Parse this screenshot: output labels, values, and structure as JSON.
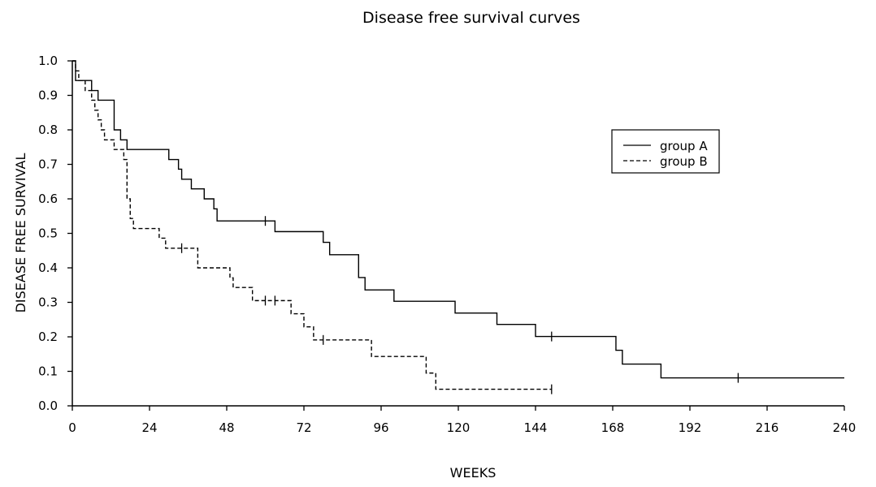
{
  "chart_data": {
    "type": "line",
    "chart_subtype": "kaplan-meier step curves",
    "title": "Disease free survival curves",
    "xlabel": "WEEKS",
    "ylabel": "DISEASE FREE SURVIVAL",
    "xlim": [
      0,
      240
    ],
    "ylim": [
      0,
      1.0
    ],
    "x_ticks": [
      0,
      24,
      48,
      72,
      96,
      120,
      144,
      168,
      192,
      216,
      240
    ],
    "y_ticks": [
      "0.0",
      "0.1",
      "0.2",
      "0.3",
      "0.4",
      "0.5",
      "0.6",
      "0.7",
      "0.8",
      "0.9",
      "1.0"
    ],
    "grid": false,
    "legend_position": "top-right",
    "series": [
      {
        "name": "group A",
        "line_style": "solid",
        "color": "#000000",
        "steps": [
          [
            0,
            1.0
          ],
          [
            1,
            0.943
          ],
          [
            6,
            0.914
          ],
          [
            8,
            0.886
          ],
          [
            13,
            0.8
          ],
          [
            15,
            0.771
          ],
          [
            17,
            0.743
          ],
          [
            30,
            0.714
          ],
          [
            33,
            0.686
          ],
          [
            34,
            0.657
          ],
          [
            37,
            0.629
          ],
          [
            41,
            0.6
          ],
          [
            44,
            0.571
          ],
          [
            45,
            0.536
          ],
          [
            63,
            0.505
          ],
          [
            78,
            0.474
          ],
          [
            80,
            0.438
          ],
          [
            89,
            0.372
          ],
          [
            91,
            0.336
          ],
          [
            100,
            0.303
          ],
          [
            119,
            0.269
          ],
          [
            132,
            0.236
          ],
          [
            144,
            0.201
          ],
          [
            169,
            0.161
          ],
          [
            171,
            0.121
          ],
          [
            183,
            0.081
          ],
          [
            240,
            0.081
          ]
        ],
        "censored": [
          [
            60,
            0.536
          ],
          [
            149,
            0.201
          ],
          [
            207,
            0.081
          ]
        ]
      },
      {
        "name": "group B",
        "line_style": "dashed",
        "color": "#000000",
        "steps": [
          [
            0,
            1.0
          ],
          [
            1,
            0.971
          ],
          [
            2,
            0.943
          ],
          [
            4,
            0.914
          ],
          [
            6,
            0.886
          ],
          [
            7,
            0.857
          ],
          [
            8,
            0.829
          ],
          [
            9,
            0.8
          ],
          [
            10,
            0.771
          ],
          [
            13,
            0.743
          ],
          [
            16,
            0.714
          ],
          [
            17,
            0.6
          ],
          [
            18,
            0.543
          ],
          [
            19,
            0.514
          ],
          [
            27,
            0.486
          ],
          [
            29,
            0.457
          ],
          [
            39,
            0.4
          ],
          [
            49,
            0.371
          ],
          [
            50,
            0.343
          ],
          [
            56,
            0.305
          ],
          [
            68,
            0.267
          ],
          [
            72,
            0.229
          ],
          [
            75,
            0.191
          ],
          [
            93,
            0.143
          ],
          [
            110,
            0.095
          ],
          [
            113,
            0.048
          ],
          [
            149,
            0.048
          ]
        ],
        "censored": [
          [
            34,
            0.457
          ],
          [
            60,
            0.305
          ],
          [
            63,
            0.305
          ],
          [
            78,
            0.191
          ],
          [
            149,
            0.048
          ]
        ]
      }
    ]
  }
}
